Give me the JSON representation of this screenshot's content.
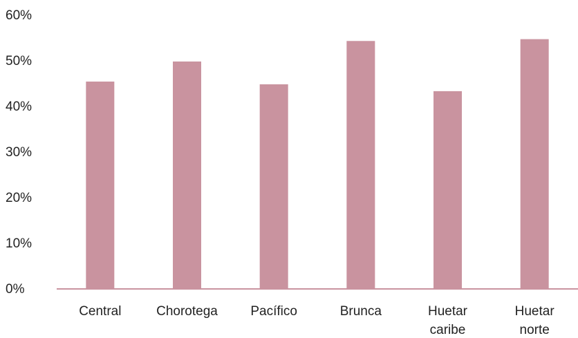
{
  "chart_data": {
    "type": "bar",
    "categories": [
      [
        "Central"
      ],
      [
        "Chorotega"
      ],
      [
        "Pacífico"
      ],
      [
        "Brunca"
      ],
      [
        "Huetar",
        "caribe"
      ],
      [
        "Huetar",
        "norte"
      ]
    ],
    "values": [
      0.453,
      0.497,
      0.447,
      0.542,
      0.432,
      0.546
    ],
    "ylim": [
      0,
      0.6
    ],
    "yticks": [
      "0%",
      "10%",
      "20%",
      "30%",
      "40%",
      "50%",
      "60%"
    ],
    "grid": false,
    "legend": "none",
    "colors": {
      "bar": "#c9939f",
      "axis": "#c9939f",
      "text": "#222222"
    }
  }
}
